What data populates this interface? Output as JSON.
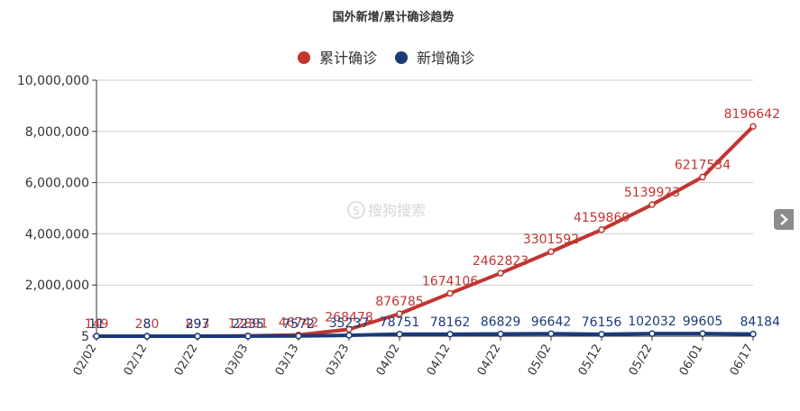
{
  "chart_data": {
    "type": "line",
    "title": "国外新增/累计确诊趋势",
    "x": [
      "02/02",
      "02/12",
      "02/22",
      "03/03",
      "03/13",
      "03/23",
      "04/02",
      "04/12",
      "04/22",
      "05/02",
      "05/12",
      "05/22",
      "06/01",
      "06/17"
    ],
    "series": [
      {
        "name": "累计确诊",
        "color": "#c23531",
        "values": [
          149,
          280,
          893,
          12891,
          46742,
          268478,
          876785,
          1674106,
          2462823,
          3301592,
          4159860,
          5139923,
          6217534,
          8196642
        ],
        "labels": [
          "149",
          "280",
          "893",
          "12891",
          "46742",
          "268478",
          "876785",
          "1674106",
          "2462823",
          "3301592",
          "4159860",
          "5139923",
          "6217534",
          "8196642"
        ]
      },
      {
        "name": "新增确诊",
        "color": "#1a3a7a",
        "values": [
          11,
          8,
          297,
          2235,
          7572,
          35237,
          78751,
          78162,
          86829,
          96642,
          76156,
          102032,
          99605,
          84184
        ],
        "labels": [
          "11",
          "8",
          "297",
          "2235",
          "7572",
          "35237",
          "78751",
          "78162",
          "86829",
          "96642",
          "76156",
          "102032",
          "99605",
          "84184"
        ]
      }
    ],
    "y_ticks": [
      "5",
      "2,000,000",
      "4,000,000",
      "6,000,000",
      "8,000,000",
      "10,000,000"
    ],
    "ylim": [
      0,
      10000000
    ],
    "legend_position": "top-center",
    "grid": "horizontal",
    "watermark": "搜狗搜索"
  },
  "icons": {
    "next": "chevron-right-icon"
  }
}
